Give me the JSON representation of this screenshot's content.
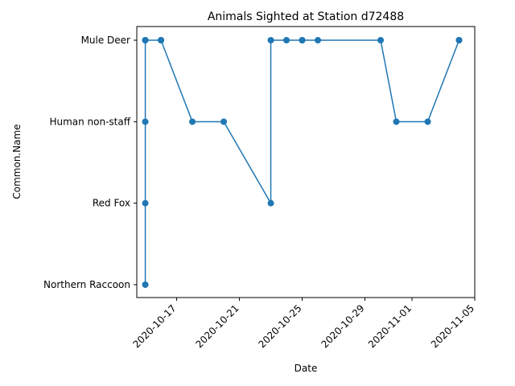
{
  "chart_data": {
    "type": "line",
    "title": "Animals Sighted at Station d72488",
    "xlabel": "Date",
    "ylabel": "Common.Name",
    "grid": false,
    "categories_y": [
      "Northern Raccoon",
      "Red Fox",
      "Human non-staff",
      "Mule Deer"
    ],
    "x_ticks": [
      "2020-10-17",
      "2020-10-21",
      "2020-10-25",
      "2020-10-29",
      "2020-11-01",
      "2020-11-05"
    ],
    "xlim": [
      "2020-10-14T11:00",
      "2020-11-05"
    ],
    "series": [
      {
        "color": "#1f77b4",
        "points": [
          {
            "x": "2020-10-15",
            "y": "Mule Deer"
          },
          {
            "x": "2020-10-15",
            "y": "Northern Raccoon"
          },
          {
            "x": "2020-10-15",
            "y": "Red Fox"
          },
          {
            "x": "2020-10-15",
            "y": "Human non-staff"
          },
          {
            "x": "2020-10-15",
            "y": "Mule Deer"
          },
          {
            "x": "2020-10-16",
            "y": "Mule Deer"
          },
          {
            "x": "2020-10-16",
            "y": "Mule Deer"
          },
          {
            "x": "2020-10-18",
            "y": "Human non-staff"
          },
          {
            "x": "2020-10-20",
            "y": "Human non-staff"
          },
          {
            "x": "2020-10-23",
            "y": "Red Fox"
          },
          {
            "x": "2020-10-23",
            "y": "Mule Deer"
          },
          {
            "x": "2020-10-24",
            "y": "Mule Deer"
          },
          {
            "x": "2020-10-25",
            "y": "Mule Deer"
          },
          {
            "x": "2020-10-25",
            "y": "Mule Deer"
          },
          {
            "x": "2020-10-26",
            "y": "Mule Deer"
          },
          {
            "x": "2020-10-30",
            "y": "Mule Deer"
          },
          {
            "x": "2020-10-31",
            "y": "Human non-staff"
          },
          {
            "x": "2020-11-02",
            "y": "Human non-staff"
          },
          {
            "x": "2020-11-04",
            "y": "Mule Deer"
          },
          {
            "x": "2020-11-04",
            "y": "Mule Deer"
          }
        ]
      }
    ]
  }
}
